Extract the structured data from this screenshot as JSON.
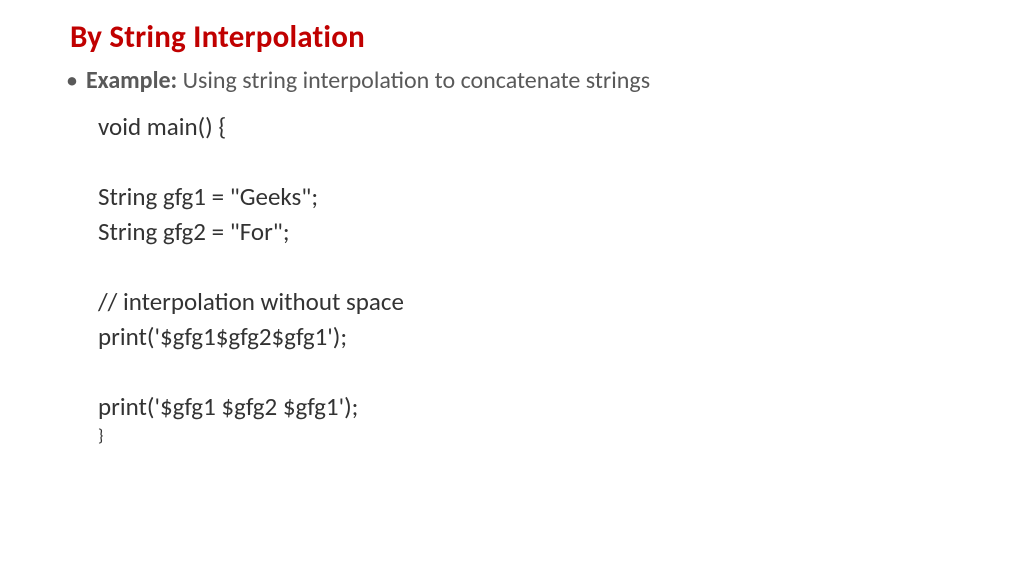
{
  "title": "By String Interpolation",
  "bullet": {
    "label": "Example:",
    "text": " Using string interpolation to concatenate strings"
  },
  "code": {
    "l1": "void main() {",
    "l2": "String gfg1 = \"Geeks\";",
    "l3": "String gfg2 = \"For\";",
    "l4": "// interpolation without space",
    "l5": "print('$gfg1$gfg2$gfg1');",
    "l6": "print('$gfg1 $gfg2 $gfg1');",
    "l7": "}"
  },
  "colors": {
    "title_color": "#c00000",
    "body_text_color": "#595959",
    "code_text_color": "#333333",
    "background": "#ffffff"
  },
  "typography": {
    "title_fontsize": 31,
    "bullet_fontsize": 24,
    "code_fontsize": 25,
    "closing_brace_fontsize": 17,
    "font_family": "Calibri"
  }
}
